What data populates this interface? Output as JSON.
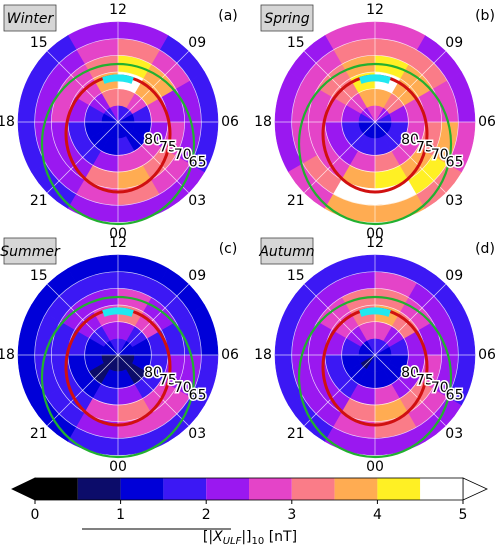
{
  "chart_data": [
    {
      "type": "polar-heatmap",
      "title": "Winter",
      "panel_label": "(a)",
      "xticks": [
        {
          "value": 0,
          "label": "00"
        },
        {
          "value": 3,
          "label": "03"
        },
        {
          "value": 6,
          "label": "06"
        },
        {
          "value": 9,
          "label": "09"
        },
        12,
        15,
        18,
        21
      ],
      "rlim": [
        90,
        60
      ],
      "rticks": [
        80,
        75,
        70,
        65
      ],
      "mlt_bins": [
        0,
        2,
        4,
        6,
        8,
        10,
        12,
        14,
        16,
        18,
        20,
        22,
        24
      ],
      "lat_bins": [
        90,
        85,
        80,
        75,
        70,
        65,
        60
      ],
      "values": [
        [
          1.2,
          1.0,
          1.0,
          1.3,
          1.5,
          1.8,
          2.0,
          1.5,
          1.2,
          1.0,
          1.0,
          1.2
        ],
        [
          1.5,
          1.2,
          1.3,
          1.8,
          2.5,
          3.0,
          3.0,
          2.2,
          1.5,
          1.2,
          1.2,
          1.3
        ],
        [
          2.8,
          2.5,
          2.0,
          2.5,
          3.8,
          4.6,
          3.5,
          2.8,
          2.2,
          1.8,
          1.8,
          2.3
        ],
        [
          3.8,
          3.2,
          2.5,
          2.3,
          3.5,
          4.2,
          3.2,
          2.8,
          2.5,
          2.2,
          2.2,
          3.2
        ],
        [
          3.0,
          2.6,
          2.2,
          2.0,
          2.8,
          3.0,
          2.6,
          2.3,
          2.2,
          2.0,
          2.2,
          2.6
        ],
        [
          2.2,
          2.0,
          1.8,
          1.6,
          1.8,
          2.0,
          2.0,
          1.8,
          1.6,
          1.6,
          1.8,
          2.0
        ]
      ]
    },
    {
      "type": "polar-heatmap",
      "title": "Spring",
      "panel_label": "(b)",
      "xticks": [
        {
          "value": 0,
          "label": "00"
        },
        {
          "value": 3,
          "label": "03"
        },
        {
          "value": 6,
          "label": "06"
        },
        {
          "value": 9,
          "label": "09"
        },
        12,
        15,
        18,
        21
      ],
      "rlim": [
        90,
        60
      ],
      "rticks": [
        80,
        75,
        70,
        65
      ],
      "mlt_bins": [
        0,
        2,
        4,
        6,
        8,
        10,
        12,
        14,
        16,
        18,
        20,
        22,
        24
      ],
      "lat_bins": [
        90,
        85,
        80,
        75,
        70,
        65,
        60
      ],
      "values": [
        [
          1.4,
          1.2,
          1.3,
          1.6,
          2.2,
          2.5,
          2.5,
          2.0,
          1.5,
          1.2,
          1.2,
          1.3
        ],
        [
          1.8,
          1.5,
          1.6,
          2.2,
          3.0,
          3.5,
          3.5,
          2.5,
          2.0,
          1.6,
          1.5,
          1.6
        ],
        [
          3.2,
          2.8,
          2.5,
          2.8,
          3.8,
          4.5,
          4.0,
          3.2,
          2.6,
          2.2,
          2.2,
          2.8
        ],
        [
          4.2,
          3.8,
          3.2,
          2.8,
          3.5,
          4.0,
          3.6,
          3.2,
          2.8,
          2.6,
          2.8,
          3.8
        ],
        [
          4.6,
          4.2,
          3.5,
          2.6,
          3.0,
          3.2,
          3.0,
          2.8,
          2.6,
          2.6,
          3.2,
          4.6
        ],
        [
          3.8,
          3.2,
          2.6,
          2.2,
          2.4,
          2.6,
          2.6,
          2.4,
          2.2,
          2.4,
          2.8,
          3.6
        ]
      ]
    },
    {
      "type": "polar-heatmap",
      "title": "Summer",
      "panel_label": "(c)",
      "xticks": [
        {
          "value": 0,
          "label": "00"
        },
        {
          "value": 3,
          "label": "03"
        },
        {
          "value": 6,
          "label": "06"
        },
        {
          "value": 9,
          "label": "09"
        },
        12,
        15,
        18,
        21
      ],
      "rlim": [
        90,
        60
      ],
      "rticks": [
        80,
        75,
        70,
        65
      ],
      "mlt_bins": [
        0,
        2,
        4,
        6,
        8,
        10,
        12,
        14,
        16,
        18,
        20,
        22,
        24
      ],
      "lat_bins": [
        90,
        85,
        80,
        75,
        70,
        65,
        60
      ],
      "values": [
        [
          0.8,
          0.8,
          0.9,
          1.0,
          1.2,
          1.5,
          1.6,
          1.2,
          1.0,
          0.9,
          0.8,
          0.8
        ],
        [
          1.0,
          0.9,
          1.0,
          1.3,
          1.8,
          2.3,
          2.2,
          1.6,
          1.2,
          1.0,
          0.9,
          1.0
        ],
        [
          2.0,
          1.8,
          1.5,
          1.8,
          2.5,
          3.2,
          2.8,
          2.2,
          1.7,
          1.4,
          1.4,
          1.6
        ],
        [
          3.2,
          2.8,
          2.2,
          1.8,
          2.2,
          2.6,
          2.4,
          2.0,
          1.8,
          1.6,
          1.7,
          2.5
        ],
        [
          2.8,
          2.5,
          2.0,
          1.6,
          1.7,
          1.8,
          1.7,
          1.6,
          1.5,
          1.5,
          1.7,
          2.3
        ],
        [
          1.8,
          1.7,
          1.5,
          1.3,
          1.3,
          1.4,
          1.4,
          1.3,
          1.3,
          1.3,
          1.4,
          1.6
        ]
      ]
    },
    {
      "type": "polar-heatmap",
      "title": "Autumn",
      "panel_label": "(d)",
      "xticks": [
        {
          "value": 0,
          "label": "00"
        },
        {
          "value": 3,
          "label": "03"
        },
        {
          "value": 6,
          "label": "06"
        },
        {
          "value": 9,
          "label": "09"
        },
        12,
        15,
        18,
        21
      ],
      "rlim": [
        90,
        60
      ],
      "rticks": [
        80,
        75,
        70,
        65
      ],
      "mlt_bins": [
        0,
        2,
        4,
        6,
        8,
        10,
        12,
        14,
        16,
        18,
        20,
        22,
        24
      ],
      "lat_bins": [
        90,
        85,
        80,
        75,
        70,
        65,
        60
      ],
      "values": [
        [
          1.0,
          1.0,
          1.1,
          1.3,
          1.6,
          1.8,
          1.8,
          1.4,
          1.1,
          1.0,
          0.9,
          1.0
        ],
        [
          1.4,
          1.2,
          1.3,
          1.7,
          2.3,
          2.8,
          2.8,
          2.0,
          1.5,
          1.2,
          1.1,
          1.2
        ],
        [
          2.6,
          2.3,
          2.0,
          2.3,
          3.2,
          3.8,
          3.4,
          2.6,
          2.0,
          1.7,
          1.7,
          2.2
        ],
        [
          3.6,
          3.3,
          2.6,
          2.2,
          2.8,
          3.3,
          3.0,
          2.6,
          2.3,
          2.1,
          2.2,
          3.0
        ],
        [
          3.2,
          2.9,
          2.4,
          2.0,
          2.3,
          2.6,
          2.4,
          2.2,
          2.1,
          2.0,
          2.2,
          2.8
        ],
        [
          2.2,
          2.0,
          1.8,
          1.6,
          1.7,
          1.8,
          1.8,
          1.7,
          1.6,
          1.6,
          1.8,
          2.0
        ]
      ]
    },
    {
      "type": "colorbar",
      "label": [
        "[|",
        "X",
        "ULF",
        "|]",
        "10",
        " [nT]"
      ],
      "xlim": [
        0,
        5
      ],
      "xticks": [
        0,
        1,
        2,
        3,
        4,
        5
      ],
      "bounds": [
        0,
        0.5,
        1,
        1.5,
        2,
        2.5,
        3,
        3.5,
        4,
        4.5,
        5
      ],
      "colors": [
        "#000000",
        "#0c0c6a",
        "#0000d8",
        "#3c18f4",
        "#9a18f0",
        "#e444c8",
        "#fa7c88",
        "#ffac52",
        "#fff024",
        "#ffffff"
      ],
      "under_color": "#000000",
      "over_color": "#ffffff"
    }
  ]
}
